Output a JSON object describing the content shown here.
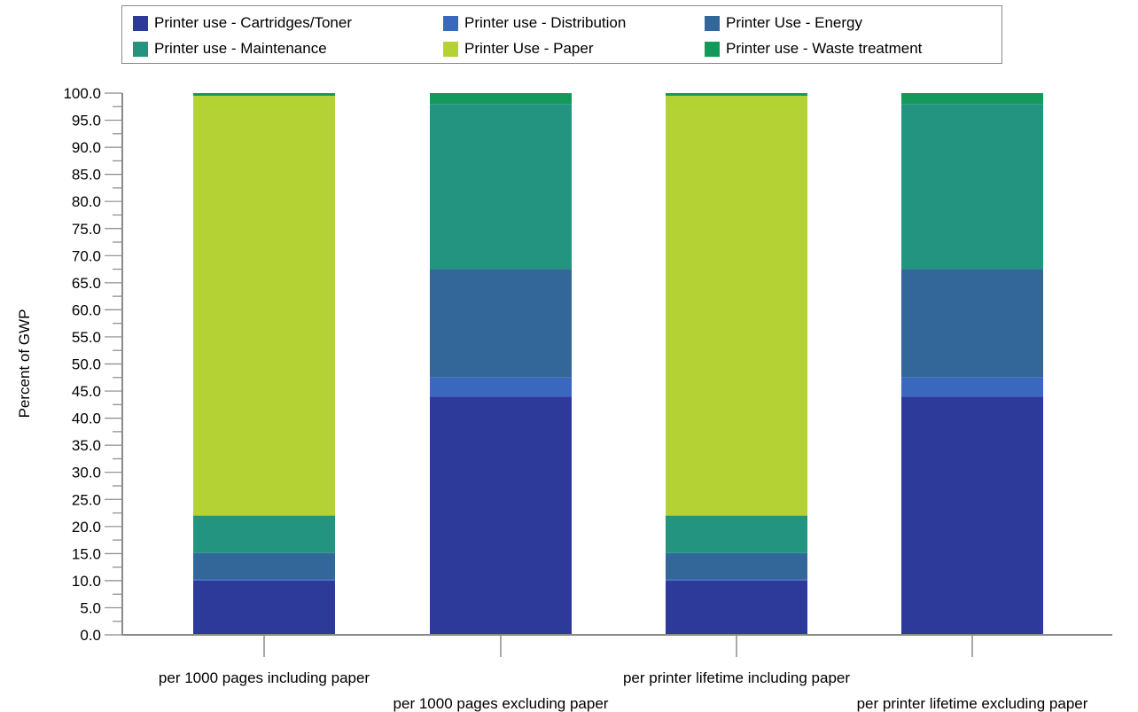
{
  "chart_data": {
    "type": "bar",
    "stacked": true,
    "title": "",
    "xlabel": "",
    "ylabel": "Percent of GWP",
    "ylim": [
      0,
      100
    ],
    "yticks": [
      "0.0",
      "5.0",
      "10.0",
      "15.0",
      "20.0",
      "25.0",
      "30.0",
      "35.0",
      "40.0",
      "45.0",
      "50.0",
      "55.0",
      "60.0",
      "65.0",
      "70.0",
      "75.0",
      "80.0",
      "85.0",
      "90.0",
      "95.0",
      "100.0"
    ],
    "categories": [
      "per 1000 pages including paper",
      "per 1000 pages excluding paper",
      "per printer lifetime including paper",
      "per printer lifetime excluding paper"
    ],
    "legend_position": "top",
    "series": [
      {
        "name": "Printer use - Cartridges/Toner",
        "color": "#2e3a9a",
        "values": [
          10.0,
          44.0,
          10.0,
          44.0
        ]
      },
      {
        "name": "Printer use - Distribution",
        "color": "#3a68bf",
        "values": [
          0.3,
          3.5,
          0.3,
          3.5
        ]
      },
      {
        "name": "Printer Use - Energy",
        "color": "#336699",
        "values": [
          4.8,
          20.0,
          4.8,
          20.0
        ]
      },
      {
        "name": "Printer use - Maintenance",
        "color": "#229480",
        "values": [
          6.9,
          30.5,
          6.9,
          30.5
        ]
      },
      {
        "name": "Printer Use - Paper",
        "color": "#b4d234",
        "values": [
          77.5,
          0.0,
          77.5,
          0.0
        ]
      },
      {
        "name": "Printer use - Waste treatment",
        "color": "#139a5a",
        "values": [
          0.5,
          2.0,
          0.5,
          2.0
        ]
      }
    ]
  }
}
